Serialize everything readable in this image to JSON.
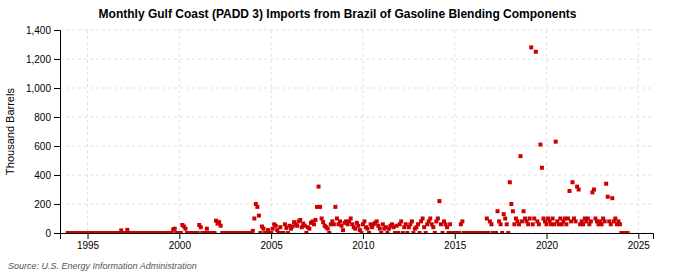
{
  "chart_data": {
    "type": "scatter",
    "title": "Monthly Gulf Coast (PADD 3) Imports from Brazil of Gasoline Blending Components",
    "y_label": "Thousand Barrels",
    "annotations": [
      "Source: U.S. Energy Information Administration"
    ],
    "color": "#cc0000",
    "marker": "square",
    "grid": true,
    "xlim": [
      1993.5,
      2025.8
    ],
    "xticks": [
      1995,
      2000,
      2005,
      2010,
      2015,
      2020,
      2025
    ],
    "ylim": [
      0,
      1400
    ],
    "yticks": [
      0,
      200,
      400,
      600,
      800,
      {
        "value": 1000,
        "label": "1,000"
      },
      {
        "value": 1200,
        "label": "1,200"
      },
      {
        "value": 1400,
        "label": "1,400"
      }
    ],
    "x": [
      1993.917,
      1994.0,
      1994.083,
      1994.167,
      1994.25,
      1994.333,
      1994.417,
      1994.5,
      1994.583,
      1994.667,
      1994.75,
      1994.833,
      1994.917,
      1995.0,
      1995.083,
      1995.167,
      1995.25,
      1995.333,
      1995.417,
      1995.5,
      1995.583,
      1995.667,
      1995.75,
      1995.833,
      1995.917,
      1996.0,
      1996.083,
      1996.167,
      1996.25,
      1996.333,
      1996.417,
      1996.5,
      1996.583,
      1996.667,
      1996.75,
      1996.833,
      1996.917,
      1997.0,
      1997.083,
      1997.167,
      1997.25,
      1997.333,
      1997.417,
      1997.5,
      1997.583,
      1997.667,
      1997.75,
      1997.833,
      1997.917,
      1998.0,
      1998.083,
      1998.167,
      1998.25,
      1998.333,
      1998.417,
      1998.5,
      1998.583,
      1998.667,
      1998.75,
      1998.833,
      1998.917,
      1999.0,
      1999.083,
      1999.167,
      1999.25,
      1999.333,
      1999.417,
      1999.5,
      1999.583,
      1999.667,
      1999.75,
      1999.833,
      1999.917,
      2000.0,
      2000.083,
      2000.167,
      2000.25,
      2000.333,
      2000.417,
      2000.5,
      2000.583,
      2000.667,
      2000.75,
      2000.833,
      2000.917,
      2001.0,
      2001.083,
      2001.167,
      2001.25,
      2001.333,
      2001.417,
      2001.5,
      2001.583,
      2001.667,
      2001.75,
      2001.833,
      2001.917,
      2002.0,
      2002.083,
      2002.167,
      2002.25,
      2002.333,
      2002.417,
      2002.5,
      2002.583,
      2002.667,
      2002.75,
      2002.833,
      2002.917,
      2003.0,
      2003.083,
      2003.167,
      2003.25,
      2003.333,
      2003.417,
      2003.5,
      2003.583,
      2003.667,
      2003.75,
      2003.833,
      2003.917,
      2004.0,
      2004.083,
      2004.167,
      2004.25,
      2004.333,
      2004.417,
      2004.5,
      2004.583,
      2004.667,
      2004.75,
      2004.833,
      2004.917,
      2005.0,
      2005.083,
      2005.167,
      2005.25,
      2005.333,
      2005.417,
      2005.5,
      2005.583,
      2005.667,
      2005.75,
      2005.833,
      2005.917,
      2006.0,
      2006.083,
      2006.167,
      2006.25,
      2006.333,
      2006.417,
      2006.5,
      2006.583,
      2006.667,
      2006.75,
      2006.833,
      2006.917,
      2007.0,
      2007.083,
      2007.167,
      2007.25,
      2007.333,
      2007.417,
      2007.5,
      2007.583,
      2007.667,
      2007.75,
      2007.833,
      2007.917,
      2008.0,
      2008.083,
      2008.167,
      2008.25,
      2008.333,
      2008.417,
      2008.5,
      2008.583,
      2008.667,
      2008.75,
      2008.833,
      2008.917,
      2009.0,
      2009.083,
      2009.167,
      2009.25,
      2009.333,
      2009.417,
      2009.5,
      2009.583,
      2009.667,
      2009.75,
      2009.833,
      2009.917,
      2010.0,
      2010.083,
      2010.167,
      2010.25,
      2010.333,
      2010.417,
      2010.5,
      2010.583,
      2010.667,
      2010.75,
      2010.833,
      2010.917,
      2011.0,
      2011.083,
      2011.167,
      2011.25,
      2011.333,
      2011.417,
      2011.5,
      2011.583,
      2011.667,
      2011.75,
      2011.833,
      2011.917,
      2012.0,
      2012.083,
      2012.167,
      2012.25,
      2012.333,
      2012.417,
      2012.5,
      2012.583,
      2012.667,
      2012.75,
      2012.833,
      2012.917,
      2013.0,
      2013.083,
      2013.167,
      2013.25,
      2013.333,
      2013.417,
      2013.5,
      2013.583,
      2013.667,
      2013.75,
      2013.833,
      2013.917,
      2014.0,
      2014.083,
      2014.167,
      2014.25,
      2014.333,
      2014.417,
      2014.5,
      2014.583,
      2014.667,
      2014.75,
      2014.833,
      2014.917,
      2015.0,
      2015.083,
      2015.167,
      2015.25,
      2015.333,
      2015.417,
      2015.5,
      2015.583,
      2015.667,
      2015.75,
      2015.833,
      2015.917,
      2016.0,
      2016.083,
      2016.167,
      2016.25,
      2016.333,
      2016.417,
      2016.5,
      2016.583,
      2016.667,
      2016.75,
      2016.833,
      2016.917,
      2017.0,
      2017.083,
      2017.167,
      2017.25,
      2017.333,
      2017.417,
      2017.5,
      2017.583,
      2017.667,
      2017.75,
      2017.833,
      2017.917,
      2018.0,
      2018.083,
      2018.167,
      2018.25,
      2018.333,
      2018.417,
      2018.5,
      2018.583,
      2018.667,
      2018.75,
      2018.833,
      2018.917,
      2019.0,
      2019.083,
      2019.167,
      2019.25,
      2019.333,
      2019.417,
      2019.5,
      2019.583,
      2019.667,
      2019.75,
      2019.833,
      2019.917,
      2020.0,
      2020.083,
      2020.167,
      2020.25,
      2020.333,
      2020.417,
      2020.5,
      2020.583,
      2020.667,
      2020.75,
      2020.833,
      2020.917,
      2021.0,
      2021.083,
      2021.167,
      2021.25,
      2021.333,
      2021.417,
      2021.5,
      2021.583,
      2021.667,
      2021.75,
      2021.833,
      2021.917,
      2022.0,
      2022.083,
      2022.167,
      2022.25,
      2022.333,
      2022.417,
      2022.5,
      2022.583,
      2022.667,
      2022.75,
      2022.833,
      2022.917,
      2023.0,
      2023.083,
      2023.167,
      2023.25,
      2023.333,
      2023.417,
      2023.5,
      2023.583,
      2023.667,
      2023.75,
      2023.833,
      2023.917,
      2024.0,
      2024.083,
      2024.167,
      2024.25,
      2024.333,
      2024.417
    ],
    "values": [
      0,
      0,
      0,
      0,
      0,
      0,
      0,
      0,
      0,
      0,
      0,
      0,
      0,
      0,
      0,
      0,
      0,
      0,
      0,
      0,
      0,
      0,
      0,
      0,
      0,
      0,
      0,
      0,
      0,
      0,
      0,
      0,
      0,
      0,
      0,
      18,
      0,
      0,
      0,
      22,
      0,
      0,
      0,
      0,
      0,
      0,
      0,
      0,
      0,
      0,
      0,
      0,
      0,
      0,
      0,
      0,
      0,
      0,
      0,
      0,
      0,
      0,
      0,
      0,
      0,
      0,
      0,
      0,
      0,
      25,
      30,
      0,
      0,
      0,
      0,
      55,
      45,
      30,
      0,
      0,
      0,
      0,
      0,
      0,
      0,
      0,
      55,
      40,
      0,
      0,
      0,
      30,
      0,
      0,
      0,
      0,
      0,
      85,
      65,
      75,
      50,
      0,
      0,
      0,
      0,
      0,
      0,
      0,
      0,
      0,
      0,
      0,
      0,
      0,
      0,
      0,
      0,
      0,
      0,
      0,
      0,
      15,
      100,
      200,
      180,
      120,
      0,
      45,
      30,
      0,
      0,
      20,
      0,
      0,
      30,
      60,
      50,
      20,
      0,
      40,
      0,
      0,
      60,
      35,
      0,
      50,
      30,
      45,
      75,
      60,
      50,
      80,
      90,
      40,
      65,
      50,
      0,
      40,
      30,
      70,
      80,
      60,
      90,
      180,
      320,
      180,
      100,
      75,
      50,
      40,
      30,
      0,
      60,
      80,
      60,
      180,
      100,
      60,
      80,
      50,
      20,
      70,
      80,
      60,
      80,
      100,
      60,
      40,
      30,
      70,
      50,
      20,
      0,
      60,
      80,
      40,
      30,
      0,
      60,
      40,
      60,
      70,
      80,
      50,
      30,
      0,
      60,
      30,
      40,
      0,
      30,
      50,
      60,
      40,
      0,
      50,
      0,
      60,
      80,
      0,
      40,
      60,
      0,
      40,
      60,
      80,
      0,
      30,
      40,
      60,
      0,
      80,
      100,
      40,
      0,
      60,
      80,
      100,
      60,
      40,
      0,
      80,
      100,
      220,
      60,
      0,
      80,
      60,
      40,
      0,
      60,
      0,
      0,
      0,
      0,
      0,
      0,
      60,
      80,
      0,
      0,
      0,
      0,
      0,
      0,
      0,
      0,
      0,
      0,
      0,
      0,
      0,
      0,
      0,
      100,
      0,
      80,
      60,
      0,
      0,
      0,
      150,
      80,
      60,
      0,
      130,
      100,
      60,
      0,
      350,
      200,
      150,
      60,
      100,
      80,
      60,
      530,
      80,
      150,
      100,
      80,
      60,
      100,
      1280,
      60,
      100,
      1250,
      80,
      60,
      610,
      450,
      100,
      80,
      60,
      100,
      80,
      60,
      100,
      60,
      630,
      80,
      60,
      100,
      60,
      80,
      100,
      60,
      100,
      290,
      80,
      350,
      100,
      80,
      320,
      300,
      60,
      80,
      60,
      100,
      80,
      100,
      60,
      80,
      280,
      300,
      100,
      80,
      60,
      80,
      60,
      100,
      80,
      340,
      250,
      80,
      60,
      240,
      80,
      100,
      60,
      80,
      60,
      0,
      0,
      0,
      0,
      0
    ]
  }
}
